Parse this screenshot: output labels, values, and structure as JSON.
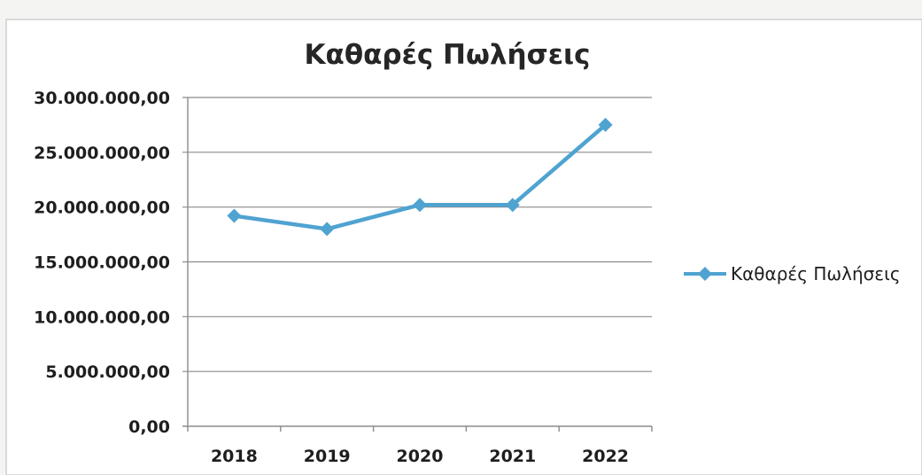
{
  "chart_data": {
    "type": "line",
    "title": "Καθαρές Πωλήσεις",
    "xlabel": "",
    "ylabel": "",
    "categories": [
      "2018",
      "2019",
      "2020",
      "2021",
      "2022"
    ],
    "series": [
      {
        "name": "Καθαρές Πωλήσεις",
        "values": [
          19200000,
          18000000,
          20200000,
          20200000,
          27500000
        ],
        "color": "#4fa3d1",
        "marker": "diamond"
      }
    ],
    "ylim": [
      0,
      30000000
    ],
    "y_ticks": [
      {
        "value": 0,
        "label": "0,00"
      },
      {
        "value": 5000000,
        "label": "5.000.000,00"
      },
      {
        "value": 10000000,
        "label": "10.000.000,00"
      },
      {
        "value": 15000000,
        "label": "15.000.000,00"
      },
      {
        "value": 20000000,
        "label": "20.000.000,00"
      },
      {
        "value": 25000000,
        "label": "25.000.000,00"
      },
      {
        "value": 30000000,
        "label": "30.000.000,00"
      }
    ],
    "grid": true,
    "legend_position": "right"
  }
}
